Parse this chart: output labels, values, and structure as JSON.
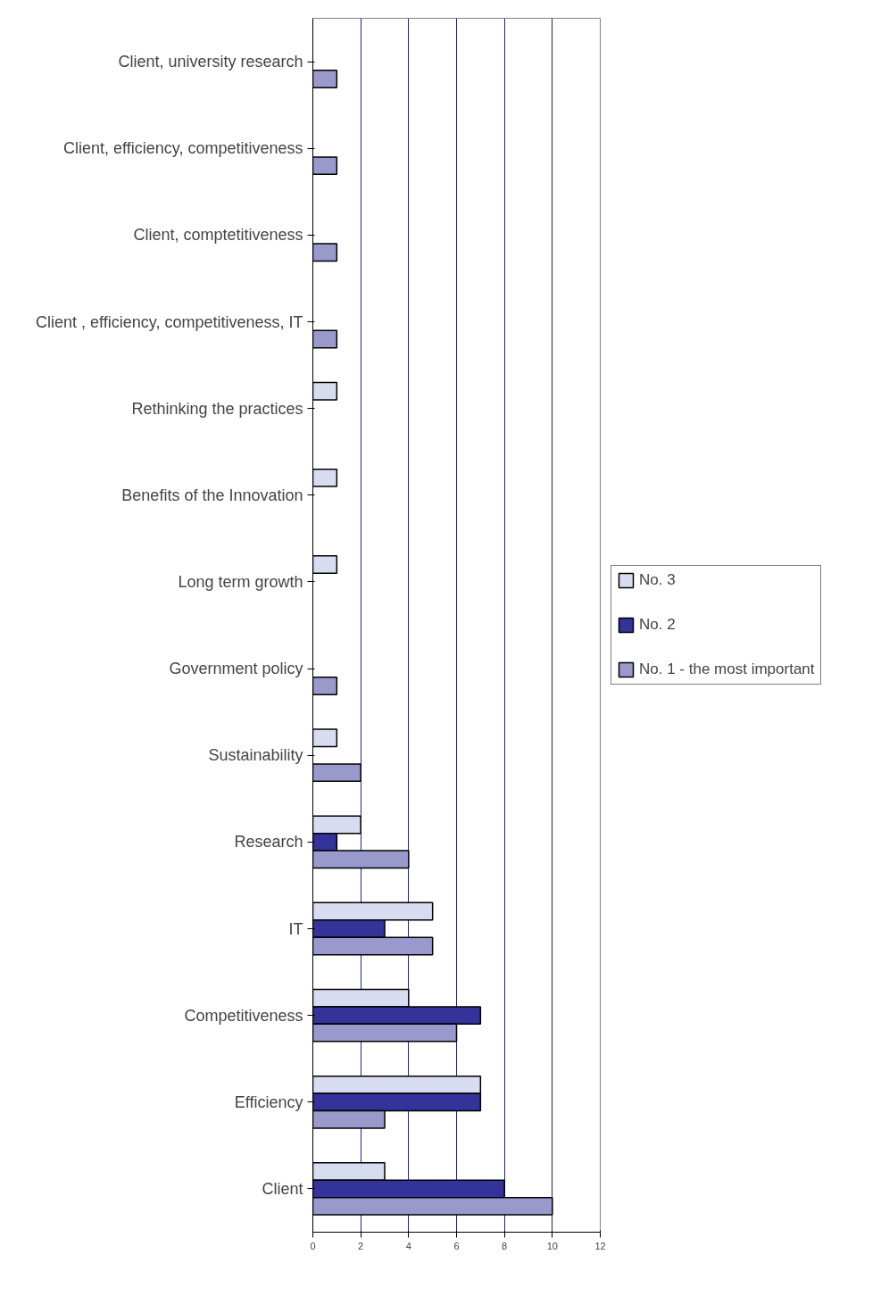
{
  "chart_data": {
    "type": "bar",
    "orientation": "horizontal",
    "categories": [
      "Client, university research",
      "Client, efficiency, competitiveness",
      "Client, comptetitiveness",
      "Client , efficiency, competitiveness, IT",
      "Rethinking the practices",
      "Benefits of the Innovation",
      "Long term growth",
      "Government policy",
      "Sustainability",
      "Research",
      "IT",
      "Competitiveness",
      "Efficiency",
      "Client"
    ],
    "series": [
      {
        "name": "No. 3",
        "color": "#d8dcf0",
        "values": [
          null,
          null,
          null,
          null,
          1,
          1,
          1,
          null,
          1,
          2,
          5,
          4,
          7,
          3
        ]
      },
      {
        "name": "No. 2",
        "color": "#333399",
        "values": [
          null,
          null,
          null,
          null,
          null,
          null,
          null,
          null,
          null,
          1,
          3,
          7,
          7,
          8
        ]
      },
      {
        "name": "No. 1 - the most important",
        "color": "#9999cc",
        "values": [
          1,
          1,
          1,
          1,
          null,
          null,
          null,
          1,
          2,
          4,
          5,
          6,
          3,
          10
        ]
      }
    ],
    "xlim": [
      0,
      12
    ],
    "xticks": [
      0,
      2,
      4,
      6,
      8,
      10,
      12
    ],
    "grid": "x",
    "legend": "right"
  }
}
